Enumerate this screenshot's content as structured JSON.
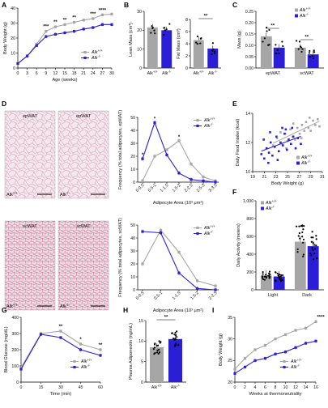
{
  "colors": {
    "wt": "#a6a6a6",
    "ko": "#2a1fd6",
    "micro_bg": "#f3e6ec",
    "micro_cell": "#d9a9bb"
  },
  "chart_data": [
    {
      "id": "A",
      "type": "line",
      "panel_label": "A",
      "xlabel": "Age (weeks)",
      "ylabel": "Body Weight (g)",
      "x": [
        0,
        3,
        6,
        9,
        12,
        15,
        18,
        21,
        24,
        27,
        30
      ],
      "xticks": [
        "0",
        "3",
        "6",
        "9",
        "12",
        "15",
        "18",
        "21",
        "24",
        "27",
        "30"
      ],
      "ylim": [
        0,
        40
      ],
      "yticks": [
        "0",
        "10",
        "20",
        "30",
        "40"
      ],
      "series": [
        {
          "name": "Alk+/+",
          "values": [
            3,
            8,
            16,
            24.5,
            27.5,
            29,
            30.5,
            32,
            33,
            35.5,
            36
          ]
        },
        {
          "name": "Alk-/-",
          "values": [
            3,
            8,
            15,
            21,
            22.5,
            23.5,
            24.5,
            26,
            27,
            29,
            29
          ]
        }
      ],
      "significance": [
        {
          "x": 9,
          "label": "***"
        },
        {
          "x": 12,
          "label": "**"
        },
        {
          "x": 15,
          "label": "**"
        },
        {
          "x": 18,
          "label": "**"
        },
        {
          "x": 24,
          "label": "***"
        },
        {
          "x": 27,
          "label": "****"
        }
      ],
      "legend": "bottom-right"
    },
    {
      "id": "B1",
      "type": "bar",
      "panel_label": "B",
      "ylabel": "Lean Mass (cm³)",
      "ylim": [
        0,
        30
      ],
      "yticks": [
        "0",
        "10",
        "20",
        "30"
      ],
      "categories": [
        "Alk+/+",
        "Alk-/-"
      ],
      "values": [
        21.5,
        20
      ]
    },
    {
      "id": "B2",
      "type": "bar",
      "ylabel": "Fat Mass (cm³)",
      "ylim": [
        0,
        8
      ],
      "yticks": [
        "0",
        "2",
        "4",
        "6",
        "8"
      ],
      "categories": [
        "Alk+/+",
        "Alk-/-"
      ],
      "values": [
        4.6,
        3.2
      ],
      "significance": [
        {
          "label": "**"
        }
      ]
    },
    {
      "id": "C",
      "type": "bar",
      "panel_label": "C",
      "ylabel": "Mass (g)",
      "ylim": [
        0,
        0.25
      ],
      "yticks": [
        "0.00",
        "0.05",
        "0.10",
        "0.15",
        "0.20",
        "0.25"
      ],
      "categories": [
        "epWAT",
        "scWAT"
      ],
      "series": [
        {
          "name": "Alk+/+",
          "values": [
            0.14,
            0.09
          ]
        },
        {
          "name": "Alk-/-",
          "values": [
            0.09,
            0.06
          ]
        }
      ],
      "significance": [
        {
          "label": "**"
        },
        {
          "label": "**"
        }
      ],
      "legend": "top-right"
    },
    {
      "id": "D1",
      "type": "line",
      "panel_label": "D",
      "xlabel": "Adipocyte Area (10³ μm²)",
      "ylabel": "Frequency (% total adipocytes, epWAT)",
      "categories": [
        "0-0.5",
        "0.5-1",
        "1-1.5",
        "1.5-2",
        "2-2.5",
        "2.5-3",
        "3-3.5"
      ],
      "ylim": [
        0,
        50
      ],
      "yticks": [
        "0",
        "10",
        "20",
        "30",
        "40",
        "50"
      ],
      "series": [
        {
          "name": "Alk+/+",
          "values": [
            1,
            20,
            25,
            32,
            14,
            4,
            1
          ]
        },
        {
          "name": "Alk-/-",
          "values": [
            18,
            46,
            21,
            7,
            2,
            1,
            0
          ]
        }
      ],
      "significance": [
        {
          "label": "*"
        },
        {
          "label": "*"
        },
        {
          "label": "*"
        }
      ],
      "legend": "top-right"
    },
    {
      "id": "D2",
      "type": "line",
      "xlabel": "Adipocyte Area (10³ μm²)",
      "ylabel": "Frequency (% total adipocytes, scWAT)",
      "categories": [
        "0-0.5",
        "0.5-1",
        "1-1.5",
        "1.5-2",
        "2-2.5"
      ],
      "ylim": [
        0,
        50
      ],
      "yticks": [
        "0",
        "10",
        "20",
        "30",
        "40",
        "50"
      ],
      "series": [
        {
          "name": "Alk+/+",
          "values": [
            20,
            46,
            29,
            7,
            3
          ]
        },
        {
          "name": "Alk-/-",
          "values": [
            45,
            44,
            13,
            1,
            0
          ]
        }
      ],
      "legend": "top-right"
    },
    {
      "id": "E",
      "type": "scatter",
      "panel_label": "E",
      "xlabel": "Body Weight (g)",
      "ylabel": "Daily Food Intake (kcal)",
      "xlim": [
        19,
        31
      ],
      "xticks": [
        "19",
        "21",
        "23",
        "25",
        "27",
        "29",
        "31"
      ],
      "ylim": [
        10,
        14
      ],
      "yticks": [
        "10",
        "12",
        "14"
      ],
      "series": [
        {
          "name": "Alk+/+",
          "points": [
            [
              22.5,
              11.8
            ],
            [
              23.2,
              12.3
            ],
            [
              24,
              11.9
            ],
            [
              24.6,
              12.6
            ],
            [
              25,
              12.1
            ],
            [
              25.5,
              12.9
            ],
            [
              25.9,
              12.4
            ],
            [
              26.3,
              12.2
            ],
            [
              26.7,
              13
            ],
            [
              27.1,
              12.6
            ],
            [
              27.5,
              13.2
            ],
            [
              27.9,
              12.8
            ],
            [
              28.2,
              13.4
            ],
            [
              28.6,
              13
            ],
            [
              29,
              12.8
            ],
            [
              29.4,
              13.5
            ],
            [
              29.8,
              13.2
            ],
            [
              30.2,
              13.6
            ],
            [
              26,
              13.3
            ],
            [
              24.8,
              11.6
            ],
            [
              27.4,
              12.3
            ],
            [
              28.8,
              13.7
            ],
            [
              23.8,
              12.7
            ],
            [
              30.5,
              13.1
            ]
          ]
        },
        {
          "name": "Alk-/-",
          "points": [
            [
              20.5,
              11.2
            ],
            [
              21,
              10.9
            ],
            [
              21.4,
              11.6
            ],
            [
              21.8,
              11.3
            ],
            [
              22.1,
              12
            ],
            [
              22.4,
              11.1
            ],
            [
              22.8,
              11.7
            ],
            [
              23.1,
              12.4
            ],
            [
              23.5,
              11.4
            ],
            [
              23.8,
              12
            ],
            [
              24.2,
              11.8
            ],
            [
              24.5,
              12.6
            ],
            [
              24.9,
              11.5
            ],
            [
              25.2,
              12.2
            ],
            [
              25.6,
              11.9
            ],
            [
              26,
              12.4
            ],
            [
              26.4,
              11.6
            ],
            [
              26.8,
              12.3
            ],
            [
              22,
              12.7
            ],
            [
              23.3,
              10.8
            ],
            [
              24.1,
              13
            ],
            [
              25.8,
              13
            ],
            [
              20.9,
              12.2
            ],
            [
              27.3,
              11.9
            ],
            [
              21.7,
              10.6
            ],
            [
              24.7,
              12.9
            ]
          ]
        }
      ],
      "legend": "bottom-right"
    },
    {
      "id": "F",
      "type": "bar",
      "panel_label": "F",
      "ylabel": "Daily Activity (meters)",
      "ylim": [
        0,
        1000
      ],
      "yticks": [
        "0",
        "200",
        "400",
        "600",
        "800",
        "1,000"
      ],
      "categories": [
        "Light",
        "Dark"
      ],
      "series": [
        {
          "name": "Alk+/+",
          "values": [
            160,
            540
          ]
        },
        {
          "name": "Alk-/-",
          "values": [
            150,
            490
          ]
        }
      ],
      "legend": "top-left"
    },
    {
      "id": "G",
      "type": "line",
      "panel_label": "G",
      "xlabel": "Time (min)",
      "ylabel": "Blood Glucose (mg/dL)",
      "x": [
        0,
        15,
        30,
        45,
        60
      ],
      "xticks": [
        "0",
        "15",
        "30",
        "45",
        "60"
      ],
      "ylim": [
        0,
        400
      ],
      "yticks": [
        "0",
        "100",
        "200",
        "300",
        "400"
      ],
      "series": [
        {
          "name": "Alk+/+",
          "values": [
            90,
            300,
            315,
            235,
            200
          ]
        },
        {
          "name": "Alk-/-",
          "values": [
            80,
            295,
            275,
            200,
            165
          ]
        }
      ],
      "significance": [
        {
          "x": 30,
          "label": "**"
        },
        {
          "x": 45,
          "label": "*"
        },
        {
          "x": 60,
          "label": "**"
        }
      ],
      "legend": "bottom-right"
    },
    {
      "id": "H",
      "type": "bar",
      "panel_label": "H",
      "ylabel": "Plasma Adiponectin (ng/mL)",
      "ylim": [
        0,
        15
      ],
      "yticks": [
        "0",
        "5",
        "10",
        "15"
      ],
      "categories": [
        "Alk+/+",
        "Alk-/-"
      ],
      "values": [
        8.5,
        10.5
      ],
      "significance": [
        {
          "label": "**"
        }
      ]
    },
    {
      "id": "I",
      "type": "line",
      "panel_label": "I",
      "xlabel": "Weeks at thermoneutrality",
      "ylabel": "Body Weight (g)",
      "x": [
        0,
        2,
        4,
        6,
        8,
        10,
        12,
        14,
        16
      ],
      "xticks": [
        "0",
        "2",
        "4",
        "6",
        "8",
        "10",
        "12",
        "14",
        "16"
      ],
      "ylim": [
        20,
        35
      ],
      "yticks": [
        "20",
        "25",
        "30",
        "35"
      ],
      "series": [
        {
          "name": "Alk+/+",
          "values": [
            23,
            25.5,
            27.5,
            28.5,
            30,
            31,
            32,
            32.5,
            34
          ]
        },
        {
          "name": "Alk-/-",
          "values": [
            22,
            23.5,
            25,
            25.5,
            26.5,
            27,
            28,
            29,
            29.5
          ]
        }
      ],
      "significance": [
        {
          "label": "****"
        }
      ],
      "legend": "bottom-right"
    }
  ],
  "micrographs": [
    {
      "region": "epWAT",
      "genotype": "Alk+/+"
    },
    {
      "region": "epWAT",
      "genotype": "Alk-/-"
    },
    {
      "region": "scWAT",
      "genotype": "Alk+/+"
    },
    {
      "region": "scWAT",
      "genotype": "Alk-/-"
    }
  ]
}
